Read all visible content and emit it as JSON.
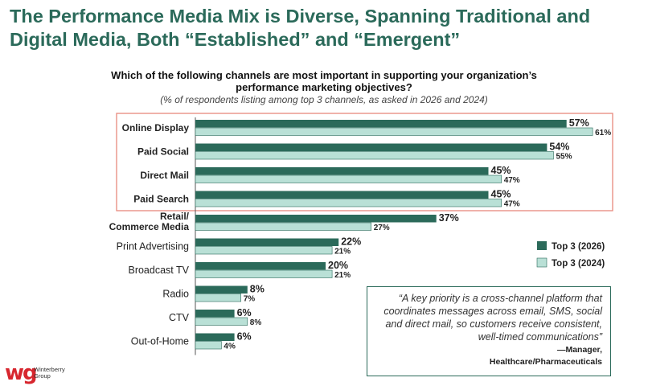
{
  "header": {
    "title": "The Performance Media Mix is Diverse, Spanning Traditional and Digital Media, Both “Established” and “Emergent”"
  },
  "question": "Which of the following channels are most important in supporting your organization’s performance marketing objectives?",
  "subnote": "(% of respondents listing among top 3 channels, as asked in 2026 and 2024)",
  "chart_data": {
    "type": "bar",
    "orientation": "horizontal",
    "categories": [
      "Online Display",
      "Paid Social",
      "Direct Mail",
      "Paid Search",
      "Retail/ Commerce Media",
      "Print Advertising",
      "Broadcast TV",
      "Radio",
      "CTV",
      "Out-of-Home"
    ],
    "highlighted_categories": [
      "Online Display",
      "Paid Social",
      "Direct Mail",
      "Paid Search"
    ],
    "series": [
      {
        "name": "Top 3 (2026)",
        "color": "#2b6a5a",
        "values": [
          57,
          54,
          45,
          45,
          37,
          22,
          20,
          8,
          6,
          6
        ]
      },
      {
        "name": "Top 3 (2024)",
        "color": "#b9e0d6",
        "values": [
          61,
          55,
          47,
          47,
          27,
          21,
          21,
          7,
          8,
          4
        ]
      }
    ],
    "value_suffix": "%",
    "xlim": [
      0,
      61
    ],
    "grid": false,
    "legend_position": "right"
  },
  "colors": {
    "accent": "#2b6a5a",
    "light": "#b9e0d6",
    "highlight_border": "#e7897d",
    "logo_red": "#d7262e"
  },
  "quote": {
    "text": "“A key priority is a cross-channel platform that coordinates messages across email, SMS, social and direct mail, so customers receive consistent, well-timed communications”",
    "attribution_role": "—Manager,",
    "attribution_industry": "Healthcare/Pharmaceuticals"
  },
  "logo": {
    "mark": "wg",
    "line1": "Winterberry",
    "line2": "Group"
  }
}
